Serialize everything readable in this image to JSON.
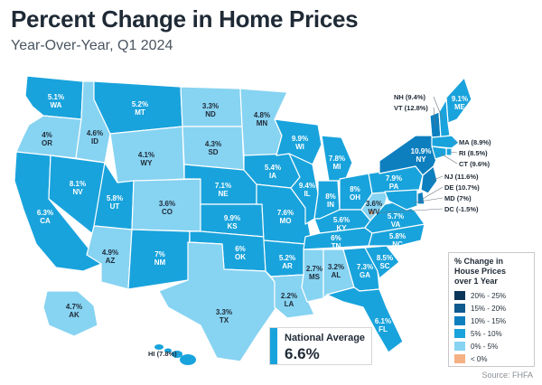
{
  "title": "Percent Change in Home Prices",
  "subtitle": "Year-Over-Year, Q1 2024",
  "colors": {
    "bin_20_25": "#0b3558",
    "bin_15_20": "#0d5a8f",
    "bin_10_15": "#0d7fbf",
    "bin_5_10": "#19a3dc",
    "bin_0_5": "#87d3f2",
    "bin_neg": "#f4b183",
    "label_dark": "#1f2a36",
    "label_light": "#ffffff"
  },
  "states": [
    {
      "code": "WA",
      "value": "5.1%",
      "bin": "bin_5_10"
    },
    {
      "code": "OR",
      "value": "4%",
      "bin": "bin_0_5"
    },
    {
      "code": "CA",
      "value": "6.3%",
      "bin": "bin_5_10"
    },
    {
      "code": "ID",
      "value": "4.6%",
      "bin": "bin_0_5"
    },
    {
      "code": "NV",
      "value": "8.1%",
      "bin": "bin_5_10"
    },
    {
      "code": "MT",
      "value": "5.2%",
      "bin": "bin_5_10"
    },
    {
      "code": "WY",
      "value": "4.1%",
      "bin": "bin_0_5"
    },
    {
      "code": "UT",
      "value": "5.8%",
      "bin": "bin_5_10"
    },
    {
      "code": "AZ",
      "value": "4.9%",
      "bin": "bin_0_5"
    },
    {
      "code": "CO",
      "value": "3.6%",
      "bin": "bin_0_5"
    },
    {
      "code": "NM",
      "value": "7%",
      "bin": "bin_5_10"
    },
    {
      "code": "ND",
      "value": "3.3%",
      "bin": "bin_0_5"
    },
    {
      "code": "SD",
      "value": "4.3%",
      "bin": "bin_0_5"
    },
    {
      "code": "NE",
      "value": "7.1%",
      "bin": "bin_5_10"
    },
    {
      "code": "KS",
      "value": "9.9%",
      "bin": "bin_5_10"
    },
    {
      "code": "OK",
      "value": "6%",
      "bin": "bin_5_10"
    },
    {
      "code": "TX",
      "value": "3.3%",
      "bin": "bin_0_5"
    },
    {
      "code": "MN",
      "value": "4.8%",
      "bin": "bin_0_5"
    },
    {
      "code": "IA",
      "value": "5.4%",
      "bin": "bin_5_10"
    },
    {
      "code": "MO",
      "value": "7.6%",
      "bin": "bin_5_10"
    },
    {
      "code": "AR",
      "value": "5.2%",
      "bin": "bin_5_10"
    },
    {
      "code": "LA",
      "value": "2.2%",
      "bin": "bin_0_5"
    },
    {
      "code": "WI",
      "value": "9.9%",
      "bin": "bin_5_10"
    },
    {
      "code": "IL",
      "value": "9.4%",
      "bin": "bin_5_10"
    },
    {
      "code": "MI",
      "value": "7.8%",
      "bin": "bin_5_10"
    },
    {
      "code": "IN",
      "value": "8%",
      "bin": "bin_5_10"
    },
    {
      "code": "OH",
      "value": "8%",
      "bin": "bin_5_10"
    },
    {
      "code": "KY",
      "value": "5.6%",
      "bin": "bin_5_10"
    },
    {
      "code": "TN",
      "value": "6%",
      "bin": "bin_5_10"
    },
    {
      "code": "MS",
      "value": "2.7%",
      "bin": "bin_0_5"
    },
    {
      "code": "AL",
      "value": "3.2%",
      "bin": "bin_0_5"
    },
    {
      "code": "GA",
      "value": "7.3%",
      "bin": "bin_5_10"
    },
    {
      "code": "FL",
      "value": "6.1%",
      "bin": "bin_5_10"
    },
    {
      "code": "SC",
      "value": "8.5%",
      "bin": "bin_5_10"
    },
    {
      "code": "NC",
      "value": "5.8%",
      "bin": "bin_5_10"
    },
    {
      "code": "VA",
      "value": "5.7%",
      "bin": "bin_5_10"
    },
    {
      "code": "WV",
      "value": "3.6%",
      "bin": "bin_0_5"
    },
    {
      "code": "PA",
      "value": "7.9%",
      "bin": "bin_5_10"
    },
    {
      "code": "NY",
      "value": "10.9%",
      "bin": "bin_10_15"
    },
    {
      "code": "ME",
      "value": "9.1%",
      "bin": "bin_5_10"
    },
    {
      "code": "AK",
      "value": "4.7%",
      "bin": "bin_0_5"
    }
  ],
  "callouts": [
    {
      "id": "nh",
      "text": "NH (9.4%)",
      "bin": "bin_5_10"
    },
    {
      "id": "vt",
      "text": "VT (12.8%)",
      "bin": "bin_10_15"
    },
    {
      "id": "ma",
      "text": "MA (8.9%)",
      "bin": "bin_5_10"
    },
    {
      "id": "ri",
      "text": "RI (8.5%)",
      "bin": "bin_5_10"
    },
    {
      "id": "ct",
      "text": "CT (9.6%)",
      "bin": "bin_5_10"
    },
    {
      "id": "nj",
      "text": "NJ (11.6%)",
      "bin": "bin_10_15"
    },
    {
      "id": "de",
      "text": "DE (10.7%)",
      "bin": "bin_10_15"
    },
    {
      "id": "md",
      "text": "MD (7%)",
      "bin": "bin_5_10"
    },
    {
      "id": "dc",
      "text": "DC (-1.5%)",
      "bin": "bin_neg"
    },
    {
      "id": "hi",
      "text": "HI (7.8%)",
      "bin": "bin_5_10"
    }
  ],
  "legend": {
    "title_lines": [
      "% Change in",
      "House Prices",
      "over 1 Year"
    ],
    "items": [
      {
        "label": "20% - 25%",
        "bin": "bin_20_25"
      },
      {
        "label": "15% - 20%",
        "bin": "bin_15_20"
      },
      {
        "label": "10% - 15%",
        "bin": "bin_10_15"
      },
      {
        "label": "5% - 10%",
        "bin": "bin_5_10"
      },
      {
        "label": "0% - 5%",
        "bin": "bin_0_5"
      },
      {
        "label": "< 0%",
        "bin": "bin_neg"
      }
    ]
  },
  "national": {
    "label": "National Average",
    "value": "6.6%"
  },
  "source": "Source: FHFA"
}
